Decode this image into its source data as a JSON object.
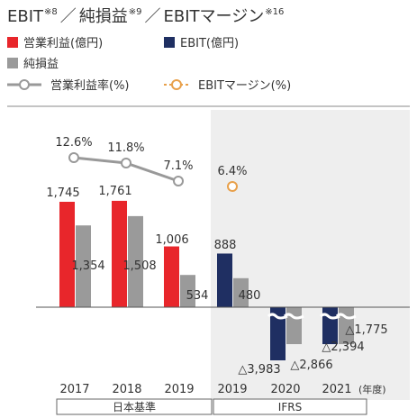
{
  "title": {
    "part1": "EBIT",
    "note1": "※8",
    "sep": "／",
    "part2": "純損益",
    "note2": "※9",
    "part3": "EBITマージン",
    "note3": "※16"
  },
  "legend": {
    "operating_profit": "営業利益(億円)",
    "ebit": "EBIT(億円)",
    "net_income": "純損益",
    "op_margin": "営業利益率(%)",
    "ebit_margin": "EBITマージン(%)"
  },
  "colors": {
    "operating_profit": "#e8262b",
    "ebit": "#1f2f62",
    "net_income": "#9a9a9a",
    "op_margin": "#999999",
    "ebit_margin": "#e8a04a"
  },
  "chart_data": {
    "type": "bar",
    "categories": [
      "2017",
      "2018",
      "2019",
      "2019",
      "2020",
      "2021"
    ],
    "year_unit": "(年度)",
    "standards": [
      {
        "label": "日本基準",
        "categories": [
          "2017",
          "2018",
          "2019"
        ]
      },
      {
        "label": "IFRS",
        "categories": [
          "2019",
          "2020",
          "2021"
        ]
      }
    ],
    "series": [
      {
        "name": "営業利益(億円)",
        "type": "bar",
        "values": [
          1745,
          1761,
          1006,
          null,
          null,
          null
        ],
        "labels": [
          "1,745",
          "1,761",
          "1,006",
          "",
          "",
          ""
        ]
      },
      {
        "name": "EBIT(億円)",
        "type": "bar",
        "values": [
          null,
          null,
          null,
          888,
          -3983,
          -2394
        ],
        "labels": [
          "",
          "",
          "",
          "888",
          "△3,983",
          "△2,394"
        ]
      },
      {
        "name": "純損益",
        "type": "bar",
        "values": [
          1354,
          1508,
          534,
          480,
          -2866,
          -1775
        ],
        "labels": [
          "1,354",
          "1,508",
          "534",
          "480",
          "△2,866",
          "△1,775"
        ]
      },
      {
        "name": "営業利益率(%)",
        "type": "line",
        "values": [
          12.6,
          11.8,
          7.1,
          null,
          null,
          null
        ],
        "labels": [
          "12.6%",
          "11.8%",
          "7.1%",
          "",
          "",
          ""
        ]
      },
      {
        "name": "EBITマージン(%)",
        "type": "line",
        "values": [
          null,
          null,
          null,
          6.4,
          null,
          null
        ],
        "labels": [
          "",
          "",
          "",
          "6.4%",
          "",
          ""
        ]
      }
    ],
    "axis_break": true
  }
}
